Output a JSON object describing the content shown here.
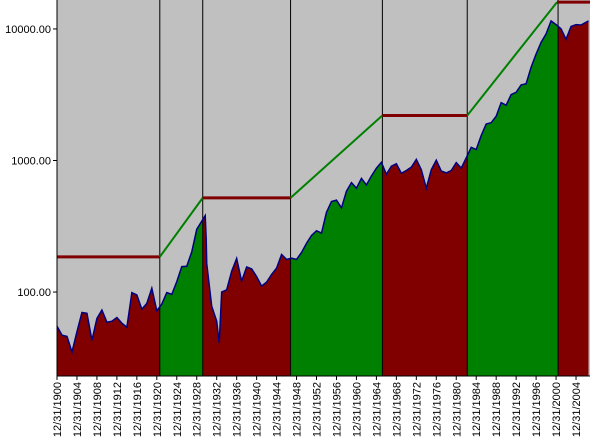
{
  "chart_data": {
    "type": "area",
    "log_scale": true,
    "background": "#c0c0c0",
    "xlim": [
      1900,
      2006.8
    ],
    "ylim": [
      23,
      16600
    ],
    "yticks": [
      {
        "value": 100,
        "label": "100.00"
      },
      {
        "value": 1000,
        "label": "1000.00"
      },
      {
        "value": 10000,
        "label": "10000.00"
      }
    ],
    "xticks": [
      {
        "value": 1900,
        "label": "12/31/1900"
      },
      {
        "value": 1904,
        "label": "12/31/1904"
      },
      {
        "value": 1908,
        "label": "12/31/1908"
      },
      {
        "value": 1912,
        "label": "12/31/1912"
      },
      {
        "value": 1916,
        "label": "12/31/1916"
      },
      {
        "value": 1920,
        "label": "12/31/1920"
      },
      {
        "value": 1924,
        "label": "12/31/1924"
      },
      {
        "value": 1928,
        "label": "12/31/1928"
      },
      {
        "value": 1932,
        "label": "12/31/1932"
      },
      {
        "value": 1936,
        "label": "12/31/1936"
      },
      {
        "value": 1940,
        "label": "12/31/1940"
      },
      {
        "value": 1944,
        "label": "12/31/1944"
      },
      {
        "value": 1948,
        "label": "12/31/1948"
      },
      {
        "value": 1952,
        "label": "12/31/1952"
      },
      {
        "value": 1956,
        "label": "12/31/1956"
      },
      {
        "value": 1960,
        "label": "12/31/1960"
      },
      {
        "value": 1964,
        "label": "12/31/1964"
      },
      {
        "value": 1968,
        "label": "12/31/1968"
      },
      {
        "value": 1972,
        "label": "12/31/1972"
      },
      {
        "value": 1976,
        "label": "12/31/1976"
      },
      {
        "value": 1980,
        "label": "12/31/1980"
      },
      {
        "value": 1984,
        "label": "12/31/1984"
      },
      {
        "value": 1988,
        "label": "12/31/1988"
      },
      {
        "value": 1992,
        "label": "12/31/1992"
      },
      {
        "value": 1996,
        "label": "12/31/1996"
      },
      {
        "value": 2000,
        "label": "12/31/2000"
      },
      {
        "value": 2004,
        "label": "12/31/2004"
      }
    ],
    "x": [
      1900,
      1901,
      1902,
      1903,
      1904,
      1905,
      1906,
      1907,
      1908,
      1909,
      1910,
      1911,
      1912,
      1913,
      1914,
      1915,
      1916,
      1917,
      1918,
      1919,
      1920,
      1921,
      1922,
      1923,
      1924,
      1925,
      1926,
      1927,
      1928,
      1929.7,
      1929.9,
      1930,
      1931,
      1932,
      1932.5,
      1933,
      1934,
      1935,
      1936,
      1937,
      1938,
      1939,
      1940,
      1941,
      1942,
      1943,
      1944,
      1945,
      1946,
      1947,
      1948,
      1949,
      1950,
      1951,
      1952,
      1953,
      1954,
      1955,
      1956,
      1957,
      1958,
      1959,
      1960,
      1961,
      1962,
      1963,
      1964,
      1965,
      1966,
      1967,
      1968,
      1969,
      1970,
      1971,
      1972,
      1973,
      1974,
      1975,
      1976,
      1977,
      1978,
      1979,
      1980,
      1981,
      1982,
      1983,
      1984,
      1985,
      1986,
      1987,
      1988,
      1989,
      1990,
      1991,
      1992,
      1993,
      1994,
      1995,
      1996,
      1997,
      1998,
      1999,
      2000,
      2001,
      2002,
      2003,
      2004,
      2005,
      2006.5
    ],
    "series": [
      {
        "color": "#000080",
        "values": [
          55,
          47,
          46,
          35,
          50,
          70,
          69,
          43,
          63,
          73,
          59,
          60,
          64,
          58,
          54,
          99,
          95,
          74,
          82,
          107,
          72,
          81,
          99,
          96,
          120,
          156,
          157,
          202,
          300,
          381,
          250,
          165,
          78,
          60,
          41,
          100,
          104,
          144,
          180,
          121,
          155,
          150,
          131,
          111,
          119,
          136,
          152,
          193,
          177,
          181,
          177,
          200,
          235,
          269,
          292,
          281,
          404,
          488,
          500,
          436,
          584,
          679,
          616,
          731,
          652,
          763,
          874,
          969,
          786,
          905,
          944,
          800,
          839,
          890,
          1020,
          851,
          616,
          852,
          1005,
          831,
          805,
          839,
          964,
          875,
          1047,
          1259,
          1212,
          1547,
          1896,
          1939,
          2169,
          2753,
          2634,
          3169,
          3301,
          3754,
          3834,
          5117,
          6448,
          7908,
          9181,
          11497,
          10787,
          10022,
          8342,
          10454,
          10783,
          10718,
          11500
        ]
      }
    ],
    "regimes": [
      {
        "start": 1900,
        "end": 1920.6,
        "color": "#800000"
      },
      {
        "start": 1920.6,
        "end": 1929.2,
        "color": "#008000"
      },
      {
        "start": 1929.2,
        "end": 1946.8,
        "color": "#800000"
      },
      {
        "start": 1946.8,
        "end": 1965.2,
        "color": "#008000"
      },
      {
        "start": 1965.2,
        "end": 1982.2,
        "color": "#800000"
      },
      {
        "start": 1982.2,
        "end": 2000.4,
        "color": "#008000"
      },
      {
        "start": 2000.4,
        "end": 2006.8,
        "color": "#800000"
      }
    ],
    "envelope": {
      "x": [
        1900,
        1920.6,
        1929.2,
        1946.8,
        1965.2,
        1982.2,
        2000.2,
        2006.8
      ],
      "values": [
        185,
        185,
        520,
        520,
        2200,
        2200,
        16000,
        16000
      ],
      "colors": [
        "#800000",
        "#008000",
        "#800000",
        "#008000",
        "#800000",
        "#008000",
        "#800000"
      ]
    }
  }
}
